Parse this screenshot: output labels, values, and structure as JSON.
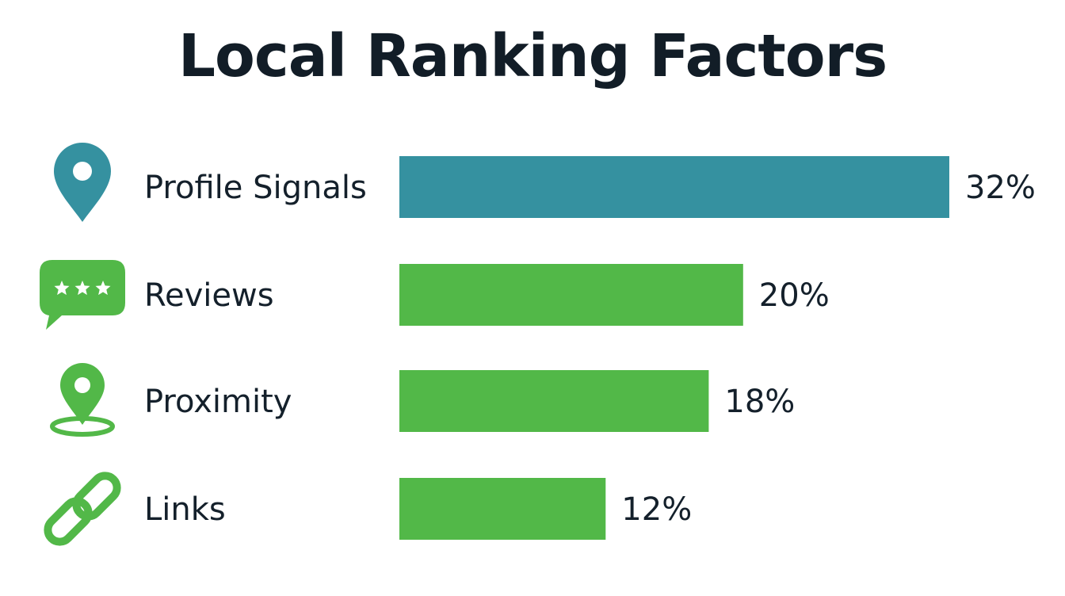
{
  "chart_data": {
    "type": "bar",
    "orientation": "horizontal",
    "title": "Local Ranking Factors",
    "categories": [
      "Profile Signals",
      "Reviews",
      "Proximity",
      "Links"
    ],
    "values": [
      32,
      20,
      18,
      12
    ],
    "value_labels": [
      "32%",
      "20%",
      "18%",
      "12%"
    ],
    "unit": "%",
    "xlim": [
      0,
      32
    ],
    "grid": false,
    "legend": "none",
    "bar_colors": [
      "#3591a0",
      "#52b848",
      "#52b848",
      "#52b848"
    ],
    "icons": [
      "map-pin-icon",
      "review-stars-icon",
      "proximity-pin-icon",
      "chain-link-icon"
    ],
    "icon_colors": [
      "#3591a0",
      "#52b848",
      "#52b848",
      "#52b848"
    ]
  }
}
